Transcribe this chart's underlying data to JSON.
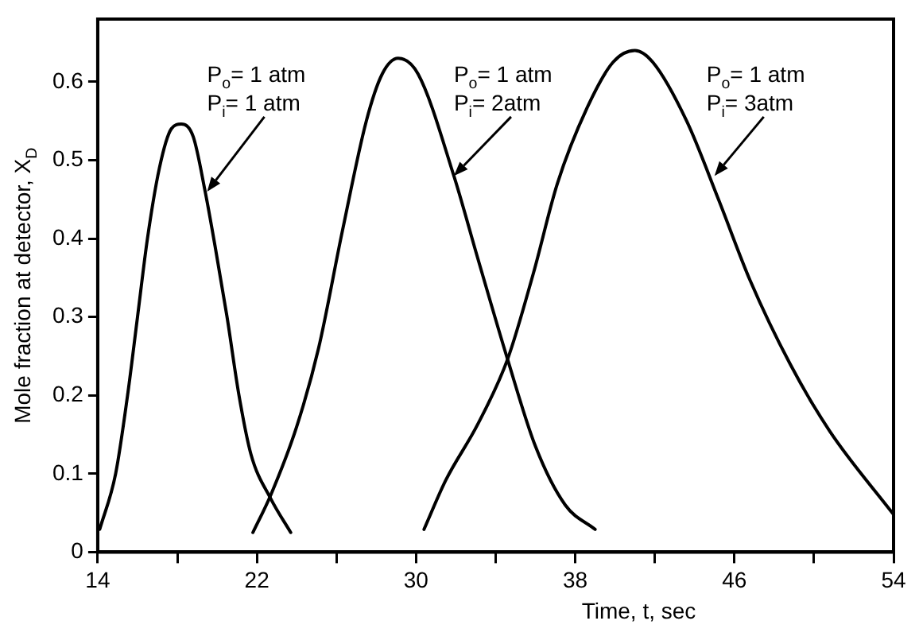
{
  "chart_data": {
    "type": "line",
    "xlabel": "Time, t, sec",
    "ylabel": "Mole fraction at detector, X$_{D}$",
    "xlim": [
      14,
      54
    ],
    "xticks": [
      14,
      {
        "value": 18,
        "label": null
      },
      22,
      {
        "value": 26,
        "label": null
      },
      30,
      {
        "value": 34,
        "label": null
      },
      38,
      {
        "value": 42,
        "label": null
      },
      46,
      {
        "value": 50,
        "label": null
      },
      54
    ],
    "ylim": [
      0,
      0.68
    ],
    "yticks": [
      0,
      0.1,
      0.2,
      0.3,
      0.4,
      0.5,
      0.6
    ],
    "grid": false,
    "legend": false,
    "marker": "none",
    "line_style": "solid",
    "series": [
      {
        "color": "#000000",
        "x": [
          14.1,
          14.9,
          15.5,
          16.0,
          16.5,
          17.1,
          17.7,
          18.2,
          18.8,
          19.4,
          19.9,
          20.5,
          21.1,
          21.7,
          22.7,
          23.7
        ],
        "values": [
          0.029,
          0.1,
          0.2,
          0.3,
          0.4,
          0.49,
          0.54,
          0.546,
          0.53,
          0.46,
          0.39,
          0.3,
          0.2,
          0.125,
          0.068,
          0.025
        ]
      },
      {
        "color": "#000000",
        "x": [
          21.8,
          22.7,
          24.0,
          25.1,
          26.3,
          27.5,
          28.3,
          29.1,
          30.1,
          31.9,
          33.1,
          34.6,
          36.0,
          37.5,
          39.0
        ],
        "values": [
          0.025,
          0.073,
          0.16,
          0.26,
          0.41,
          0.55,
          0.61,
          0.63,
          0.61,
          0.48,
          0.375,
          0.246,
          0.135,
          0.06,
          0.029
        ]
      },
      {
        "color": "#000000",
        "x": [
          30.4,
          31.5,
          33.1,
          34.6,
          35.9,
          37.1,
          38.6,
          39.9,
          41.0,
          41.9,
          43.6,
          45.2,
          46.8,
          48.8,
          50.8,
          54.0
        ],
        "values": [
          0.029,
          0.092,
          0.163,
          0.246,
          0.356,
          0.47,
          0.567,
          0.625,
          0.64,
          0.625,
          0.55,
          0.45,
          0.346,
          0.24,
          0.154,
          0.048
        ]
      }
    ],
    "annotations": [
      {
        "text": "P$_{o}$= 1 atm\nP$_{i}$= 1 atm",
        "x": 19.5,
        "y": 0.46
      },
      {
        "text": "P$_{o}$= 1 atm\nP$_{i}$= 2atm",
        "x": 31.9,
        "y": 0.48
      },
      {
        "text": "P$_{o}$= 1 atm\nP$_{i}$= 3atm",
        "x": 45.0,
        "y": 0.48
      }
    ]
  }
}
